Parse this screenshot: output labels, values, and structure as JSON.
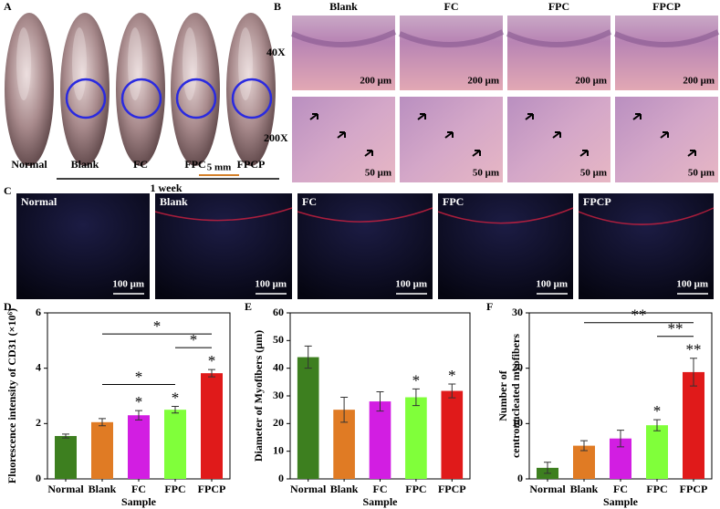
{
  "panel_a": {
    "letter": "A",
    "samples": [
      "Normal",
      "Blank",
      "FC",
      "FPC",
      "FPCP"
    ],
    "scale": "5 mm",
    "caption": "1 week"
  },
  "panel_b": {
    "letter": "B",
    "columns": [
      "Blank",
      "FC",
      "FPC",
      "FPCP"
    ],
    "rows": [
      "40X",
      "200X"
    ],
    "scales": [
      "200 μm",
      "50 μm"
    ]
  },
  "panel_c": {
    "letter": "C",
    "samples": [
      "Normal",
      "Blank",
      "FC",
      "FPC",
      "FPCP"
    ],
    "scale": "100 μm"
  },
  "chart_data": [
    {
      "type": "bar",
      "panel": "D",
      "ylabel": [
        "Fluorescence intensity of CD31 (×10⁶)"
      ],
      "xlabel": "Sample",
      "categories": [
        "Normal",
        "Blank",
        "FC",
        "FPC",
        "FPCP"
      ],
      "values": [
        1.55,
        2.05,
        2.3,
        2.5,
        3.82
      ],
      "errors": [
        0.07,
        0.13,
        0.17,
        0.12,
        0.13
      ],
      "colors": [
        "#3d7f1f",
        "#e07b24",
        "#d21ee2",
        "#80ff3a",
        "#e01a1a"
      ],
      "bar_annotations": [
        null,
        null,
        "*",
        "*",
        "*"
      ],
      "significance": [
        {
          "from": 1,
          "to": 3,
          "label": "*"
        },
        {
          "from": 3,
          "to": 4,
          "label": "*"
        },
        {
          "from": 1,
          "to": 4,
          "label": "*"
        }
      ],
      "ylim": [
        0,
        6
      ],
      "yticks": [
        0,
        2,
        4,
        6
      ]
    },
    {
      "type": "bar",
      "panel": "E",
      "ylabel": [
        "Diameter of Myofibers (μm)"
      ],
      "xlabel": "Sample",
      "categories": [
        "Normal",
        "Blank",
        "FC",
        "FPC",
        "FPCP"
      ],
      "values": [
        44,
        25,
        28,
        29.5,
        31.8
      ],
      "errors": [
        4,
        4.5,
        3.5,
        3,
        2.5
      ],
      "colors": [
        "#3d7f1f",
        "#e07b24",
        "#d21ee2",
        "#80ff3a",
        "#e01a1a"
      ],
      "bar_annotations": [
        null,
        null,
        null,
        "*",
        "*"
      ],
      "significance": [],
      "ylim": [
        0,
        60
      ],
      "yticks": [
        0,
        10,
        20,
        30,
        40,
        50,
        60
      ]
    },
    {
      "type": "bar",
      "panel": "F",
      "ylabel": [
        "Number of",
        "centronucleated myofibers"
      ],
      "xlabel": "Sample",
      "categories": [
        "Normal",
        "Blank",
        "FC",
        "FPC",
        "FPCP"
      ],
      "values": [
        2,
        6,
        7.3,
        9.7,
        19.3
      ],
      "errors": [
        1,
        0.9,
        1.5,
        1,
        2.5
      ],
      "colors": [
        "#3d7f1f",
        "#e07b24",
        "#d21ee2",
        "#80ff3a",
        "#e01a1a"
      ],
      "bar_annotations": [
        null,
        null,
        null,
        "*",
        "**"
      ],
      "significance": [
        {
          "from": 3,
          "to": 4,
          "label": "**"
        },
        {
          "from": 1,
          "to": 4,
          "label": "**"
        }
      ],
      "ylim": [
        0,
        30
      ],
      "yticks": [
        0,
        10,
        20,
        30
      ]
    }
  ]
}
